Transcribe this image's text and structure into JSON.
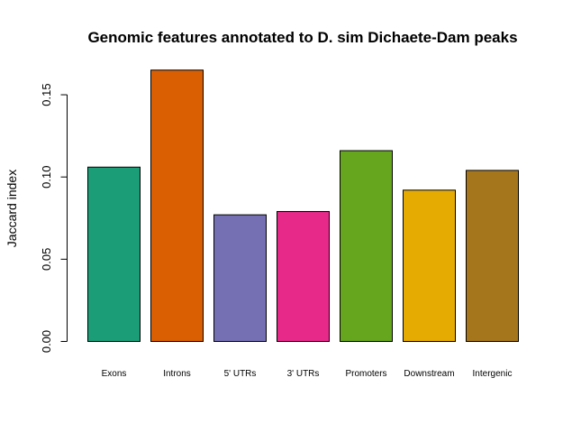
{
  "chart_data": {
    "type": "bar",
    "title": "Genomic features annotated to D. sim Dichaete-Dam peaks",
    "xlabel": "",
    "ylabel": "Jaccard index",
    "categories": [
      "Exons",
      "Introns",
      "5' UTRs",
      "3' UTRs",
      "Promoters",
      "Downstream",
      "Intergenic"
    ],
    "values": [
      0.106,
      0.165,
      0.077,
      0.079,
      0.116,
      0.092,
      0.104
    ],
    "colors": [
      "#1b9e77",
      "#d95f02",
      "#7570b3",
      "#e7298a",
      "#66a61e",
      "#e6ab02",
      "#a6761d"
    ],
    "yticks": [
      "0.00",
      "0.05",
      "0.10",
      "0.15"
    ],
    "ylim": [
      0,
      0.165
    ],
    "grid": false,
    "legend": "none"
  }
}
